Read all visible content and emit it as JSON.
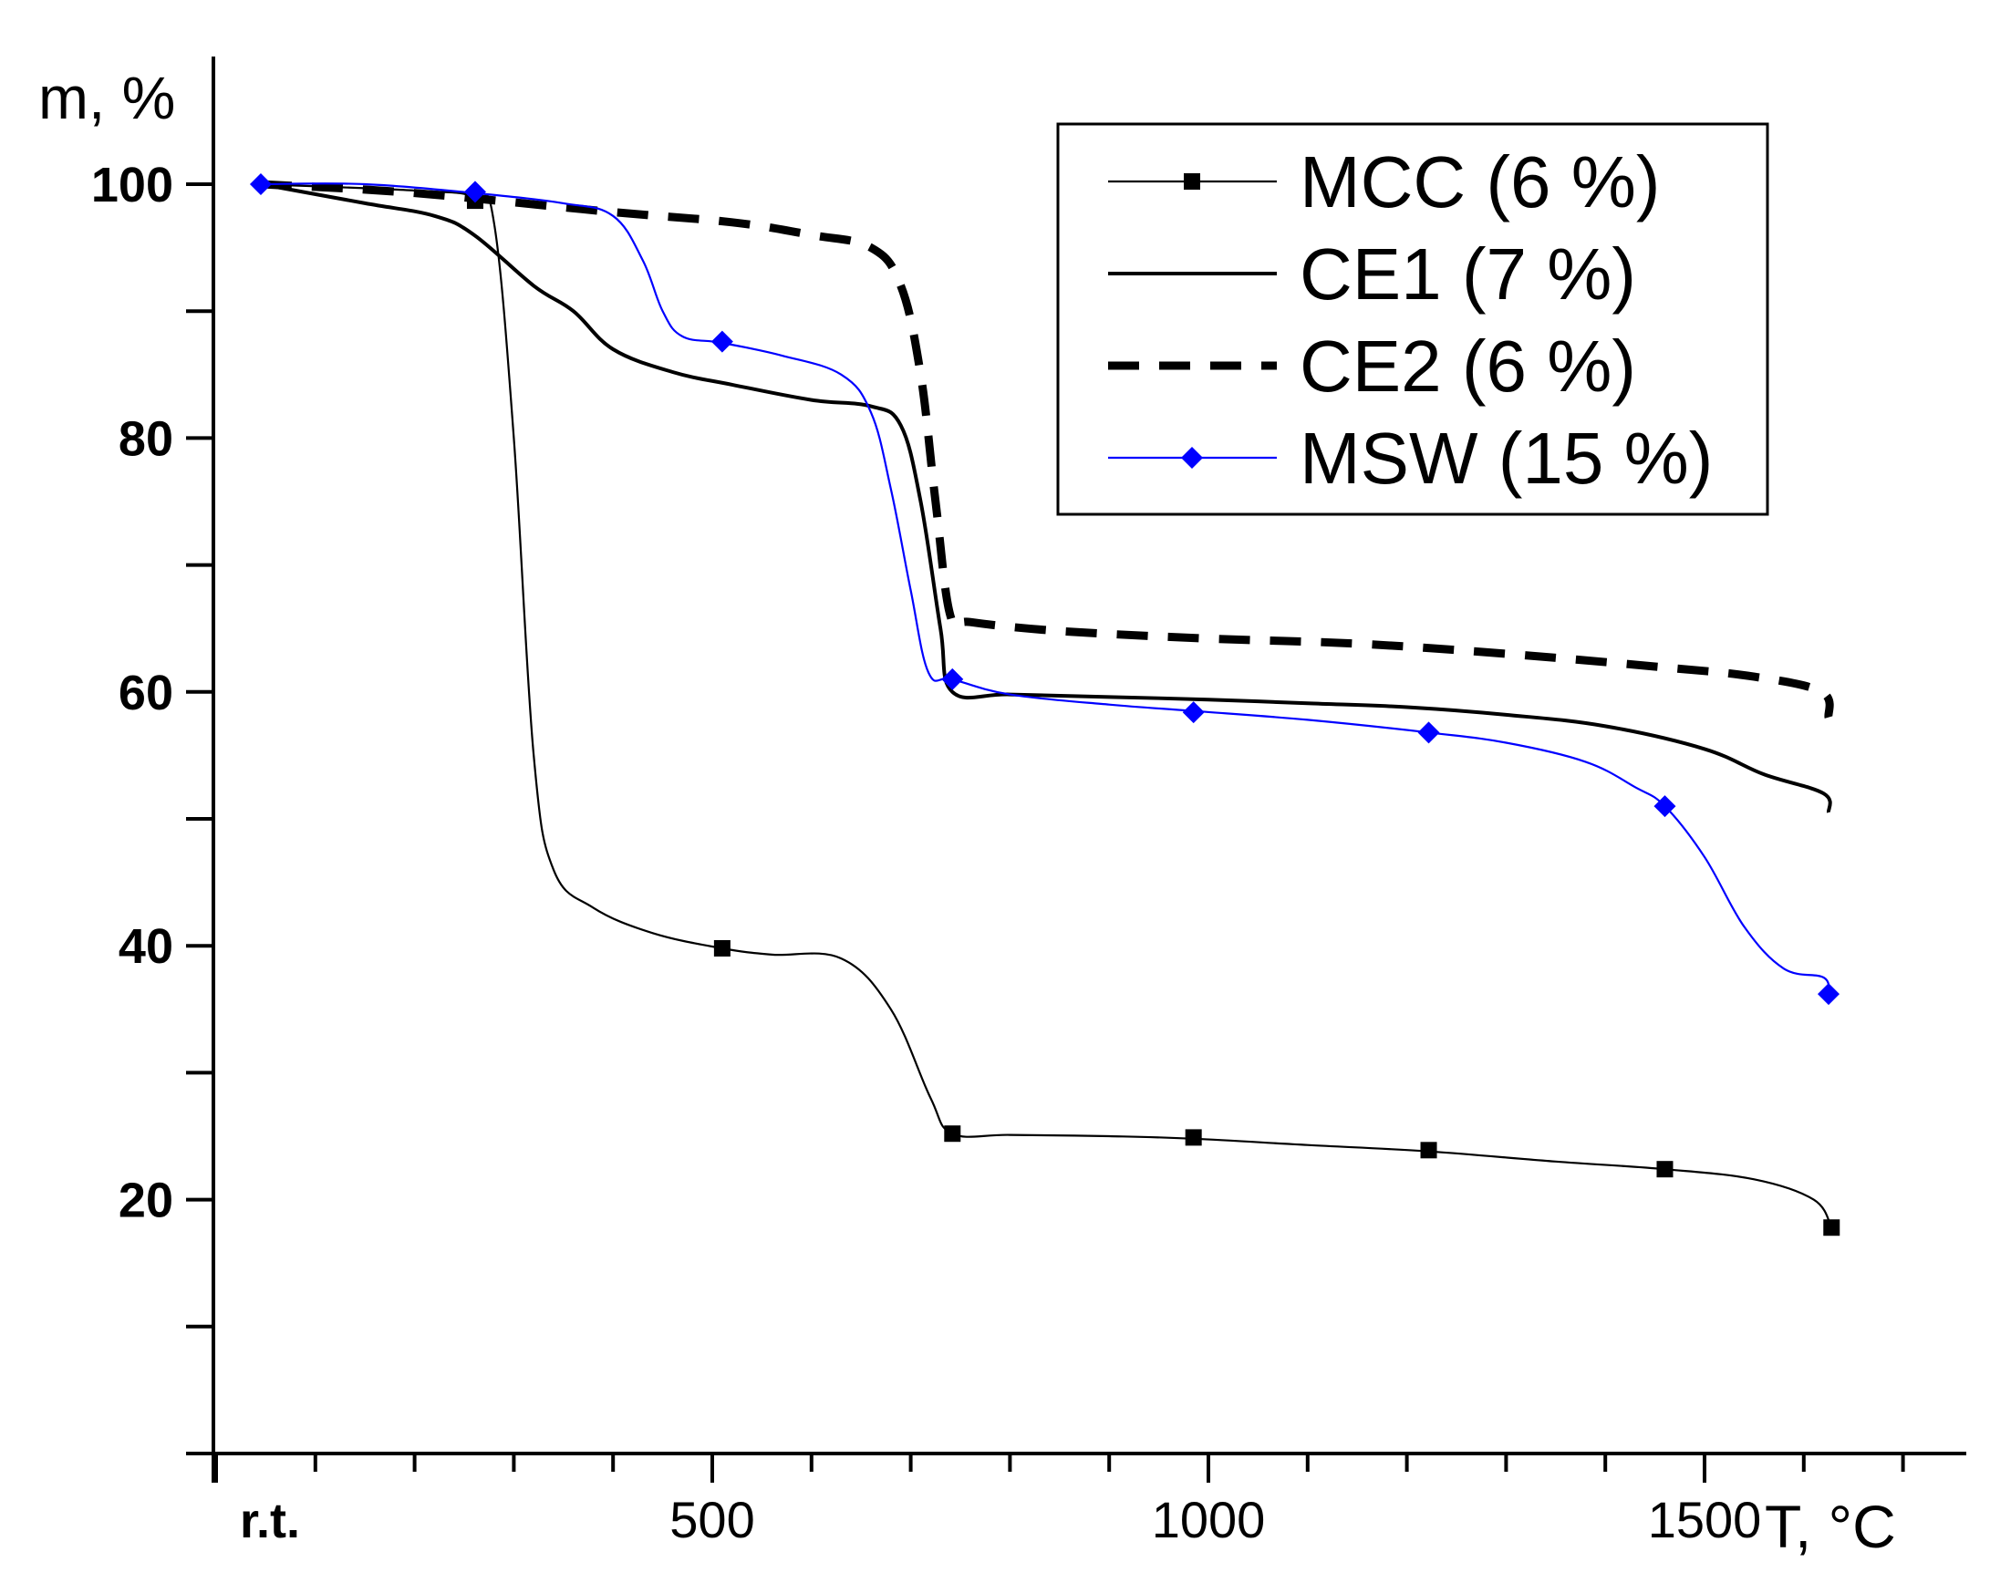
{
  "chart_data": {
    "type": "line",
    "xlabel": "T, °C",
    "ylabel": "m, %",
    "xlim": [
      0,
      1750
    ],
    "ylim": [
      0,
      100
    ],
    "x_ticks": [
      {
        "value": 0,
        "label": "r.t."
      },
      {
        "value": 500,
        "label": "500"
      },
      {
        "value": 1000,
        "label": "1000"
      },
      {
        "value": 1500,
        "label": "1500"
      }
    ],
    "y_ticks": [
      {
        "value": 20,
        "label": "20"
      },
      {
        "value": 40,
        "label": "40"
      },
      {
        "value": 60,
        "label": "60"
      },
      {
        "value": 80,
        "label": "80"
      },
      {
        "value": 100,
        "label": "100"
      }
    ],
    "legend_position": "top-right",
    "grid": false,
    "series": [
      {
        "name": "MCC (6 %)",
        "color": "#000000",
        "style": "thin-solid",
        "marker": "square",
        "points": [
          [
            45,
            100
          ],
          [
            200,
            99.5
          ],
          [
            260,
            99
          ],
          [
            280,
            97
          ],
          [
            300,
            80
          ],
          [
            320,
            55
          ],
          [
            340,
            46
          ],
          [
            380,
            43
          ],
          [
            440,
            41
          ],
          [
            510,
            39.8
          ],
          [
            560,
            39.3
          ],
          [
            630,
            39
          ],
          [
            680,
            35
          ],
          [
            720,
            28
          ],
          [
            742,
            25.2
          ],
          [
            800,
            25.1
          ],
          [
            900,
            25
          ],
          [
            985,
            24.8
          ],
          [
            1100,
            24.3
          ],
          [
            1222,
            23.8
          ],
          [
            1350,
            23
          ],
          [
            1460,
            22.4
          ],
          [
            1550,
            21.6
          ],
          [
            1610,
            20
          ],
          [
            1628,
            17.8
          ]
        ],
        "markers": [
          [
            261,
            98.7
          ],
          [
            510,
            39.8
          ],
          [
            742,
            25.2
          ],
          [
            985,
            24.9
          ],
          [
            1222,
            23.9
          ],
          [
            1460,
            22.4
          ],
          [
            1628,
            17.8
          ]
        ]
      },
      {
        "name": "CE1 (7 %)",
        "color": "#000000",
        "style": "solid",
        "marker": "none",
        "points": [
          [
            45,
            100
          ],
          [
            150,
            98.5
          ],
          [
            220,
            97.5
          ],
          [
            260,
            96
          ],
          [
            320,
            92
          ],
          [
            360,
            90
          ],
          [
            400,
            87
          ],
          [
            460,
            85.2
          ],
          [
            520,
            84.2
          ],
          [
            600,
            83
          ],
          [
            660,
            82.5
          ],
          [
            690,
            81
          ],
          [
            710,
            75
          ],
          [
            730,
            65
          ],
          [
            742,
            60
          ],
          [
            800,
            59.8
          ],
          [
            900,
            59.6
          ],
          [
            1000,
            59.4
          ],
          [
            1100,
            59.1
          ],
          [
            1200,
            58.8
          ],
          [
            1300,
            58.2
          ],
          [
            1400,
            57.3
          ],
          [
            1500,
            55.5
          ],
          [
            1560,
            53.5
          ],
          [
            1620,
            52
          ],
          [
            1625,
            50.5
          ]
        ]
      },
      {
        "name": "CE2 (6 %)",
        "color": "#000000",
        "style": "dashed",
        "marker": "none",
        "points": [
          [
            45,
            100
          ],
          [
            200,
            99.3
          ],
          [
            400,
            97.8
          ],
          [
            520,
            97
          ],
          [
            600,
            96
          ],
          [
            660,
            95
          ],
          [
            690,
            92
          ],
          [
            710,
            85
          ],
          [
            725,
            75
          ],
          [
            740,
            66
          ],
          [
            760,
            65.5
          ],
          [
            850,
            64.8
          ],
          [
            1000,
            64.2
          ],
          [
            1150,
            63.8
          ],
          [
            1300,
            63
          ],
          [
            1450,
            62
          ],
          [
            1550,
            61.2
          ],
          [
            1618,
            60
          ],
          [
            1625,
            58
          ]
        ]
      },
      {
        "name": "MSW (15 %)",
        "color": "#0000ff",
        "style": "thin-solid",
        "marker": "diamond",
        "points": [
          [
            45,
            100
          ],
          [
            150,
            100
          ],
          [
            260,
            99.3
          ],
          [
            350,
            98.5
          ],
          [
            400,
            97.5
          ],
          [
            430,
            94
          ],
          [
            450,
            90
          ],
          [
            470,
            88
          ],
          [
            510,
            87.5
          ],
          [
            570,
            86.5
          ],
          [
            630,
            85
          ],
          [
            660,
            82
          ],
          [
            680,
            76
          ],
          [
            700,
            68
          ],
          [
            718,
            61.5
          ],
          [
            742,
            61
          ],
          [
            800,
            59.8
          ],
          [
            900,
            59
          ],
          [
            985,
            58.5
          ],
          [
            1100,
            57.8
          ],
          [
            1222,
            56.8
          ],
          [
            1300,
            56
          ],
          [
            1380,
            54.5
          ],
          [
            1430,
            52.5
          ],
          [
            1460,
            51
          ],
          [
            1500,
            47
          ],
          [
            1540,
            41.5
          ],
          [
            1580,
            38.2
          ],
          [
            1620,
            37.5
          ],
          [
            1625,
            36.2
          ]
        ],
        "markers": [
          [
            45,
            100
          ],
          [
            261,
            99.4
          ],
          [
            510,
            87.6
          ],
          [
            742,
            61
          ],
          [
            985,
            58.4
          ],
          [
            1222,
            56.8
          ],
          [
            1460,
            51
          ],
          [
            1625,
            36.2
          ]
        ]
      }
    ]
  }
}
